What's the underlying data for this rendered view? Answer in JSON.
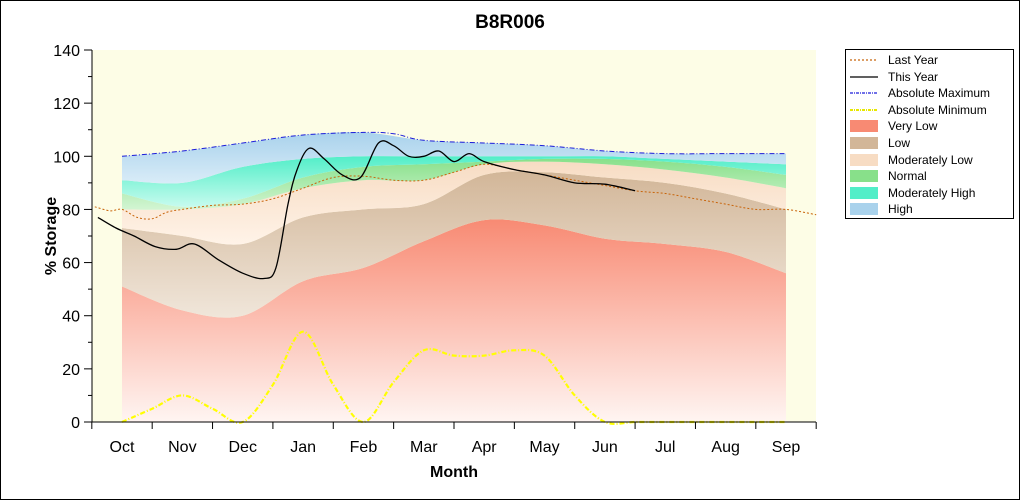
{
  "chart_data": {
    "type": "area",
    "title": "B8R006",
    "xlabel": "Month",
    "ylabel": "% Storage",
    "ylim": [
      0,
      140
    ],
    "yticks": [
      0,
      20,
      40,
      60,
      80,
      100,
      120,
      140
    ],
    "categories": [
      "Oct",
      "Nov",
      "Dec",
      "Jan",
      "Feb",
      "Mar",
      "Apr",
      "May",
      "Jun",
      "Jul",
      "Aug",
      "Sep"
    ],
    "band_x": [
      0,
      1,
      2,
      3,
      4,
      5,
      6,
      7,
      8,
      9,
      10,
      11
    ],
    "bands": [
      {
        "name": "Very Low",
        "lower": [
          0,
          0,
          0,
          0,
          0,
          0,
          0,
          0,
          0,
          0,
          0,
          0
        ],
        "upper": [
          51,
          42,
          40,
          53,
          58,
          68,
          76,
          74,
          69,
          67,
          64,
          56
        ],
        "color_top": "#f88a73",
        "color_bottom": "#fff5f2"
      },
      {
        "name": "Low",
        "lower": [
          51,
          42,
          40,
          53,
          58,
          68,
          76,
          74,
          69,
          67,
          64,
          56
        ],
        "upper": [
          73,
          70,
          67,
          77,
          80,
          82,
          93,
          94,
          92,
          90,
          86,
          80
        ],
        "color_top": "#d2b698",
        "color_bottom": "#f0e6da"
      },
      {
        "name": "Moderately Low",
        "lower": [
          73,
          70,
          67,
          77,
          80,
          82,
          93,
          94,
          92,
          90,
          86,
          80
        ],
        "upper": [
          80,
          80,
          82,
          88,
          91,
          91,
          97,
          98,
          97,
          95,
          92,
          88
        ],
        "color_top": "#f7dcc3",
        "color_bottom": "#fff3e8"
      },
      {
        "name": "Normal",
        "lower": [
          80,
          80,
          82,
          88,
          91,
          91,
          97,
          98,
          97,
          95,
          92,
          88
        ],
        "upper": [
          86,
          81,
          84,
          92,
          96,
          97,
          98,
          99,
          99,
          98,
          96,
          93
        ],
        "color_top": "#88e08a",
        "color_bottom": "#d3f5d3"
      },
      {
        "name": "Moderately High",
        "lower": [
          86,
          81,
          84,
          92,
          96,
          97,
          98,
          99,
          99,
          98,
          96,
          93
        ],
        "upper": [
          91,
          90,
          96,
          99,
          100,
          100,
          100,
          100,
          100,
          99,
          98,
          97
        ],
        "color_top": "#52eec8",
        "color_bottom": "#c7fbee"
      },
      {
        "name": "High",
        "lower": [
          91,
          90,
          96,
          99,
          100,
          100,
          100,
          100,
          100,
          99,
          98,
          97
        ],
        "upper": [
          100,
          102,
          105,
          108,
          109,
          106,
          105,
          104,
          102,
          101,
          101,
          101
        ],
        "color_top": "#a9d2ec",
        "color_bottom": "#d9ecf8"
      }
    ],
    "series": [
      {
        "name": "Last Year",
        "style": "dotted",
        "color": "#c8640a",
        "x": [
          -0.45,
          -0.2,
          0,
          0.25,
          0.5,
          0.75,
          1,
          1.5,
          2,
          2.5,
          3,
          3.5,
          4,
          4.5,
          5,
          5.5,
          6,
          6.5,
          7,
          7.5,
          8,
          8.5,
          9,
          9.5,
          10,
          10.5,
          11,
          11.5
        ],
        "y": [
          81,
          79.5,
          80,
          77,
          76.5,
          79,
          80,
          81.5,
          82,
          84,
          88,
          92,
          92.5,
          91,
          91,
          94,
          97,
          95,
          93,
          91,
          89,
          87,
          86,
          84,
          82,
          80,
          80,
          78
        ]
      },
      {
        "name": "This Year",
        "style": "solid",
        "color": "#000000",
        "x": [
          -0.4,
          -0.1,
          0.2,
          0.55,
          0.9,
          1.2,
          1.6,
          2,
          2.35,
          2.55,
          2.75,
          2.9,
          3.1,
          3.35,
          3.65,
          3.95,
          4.25,
          4.5,
          4.75,
          5,
          5.25,
          5.5,
          5.75,
          6,
          6.5,
          7,
          7.5,
          8,
          8.5
        ],
        "y": [
          77,
          73,
          70,
          66,
          65,
          67,
          61,
          56,
          54,
          58,
          82,
          95,
          103,
          99,
          93,
          92,
          105,
          104,
          100,
          100,
          102,
          98,
          101,
          98,
          95,
          93,
          90,
          89.5,
          87
        ]
      },
      {
        "name": "Absolute Maximum",
        "style": "dashdot",
        "color": "#1c1cd9",
        "x": [
          0,
          1,
          2,
          3,
          4,
          4.5,
          5,
          6,
          7,
          8,
          9,
          10,
          11
        ],
        "y": [
          100,
          102,
          105,
          108,
          109,
          108.5,
          106,
          105,
          104,
          102,
          101,
          101,
          101
        ]
      },
      {
        "name": "Absolute Minimum",
        "style": "dashdot",
        "color": "#ffff00",
        "x": [
          0,
          0.5,
          1,
          1.5,
          2,
          2.5,
          3,
          3.5,
          4,
          4.5,
          5,
          5.5,
          6,
          6.5,
          7,
          7.5,
          8,
          8.5,
          9,
          9.5,
          10,
          10.5,
          11
        ],
        "y": [
          0,
          5,
          10,
          5,
          0,
          14,
          34,
          14,
          0,
          15,
          27,
          25,
          25,
          27,
          25,
          10,
          0,
          0,
          0,
          0,
          0,
          0,
          0
        ]
      }
    ],
    "legend": [
      {
        "label": "Last Year",
        "kind": "line",
        "color": "#c8640a",
        "dash": "2,2"
      },
      {
        "label": "This Year",
        "kind": "line",
        "color": "#000000",
        "dash": ""
      },
      {
        "label": "Absolute Maximum",
        "kind": "line",
        "color": "#1c1cd9",
        "dash": "3,1,1,1"
      },
      {
        "label": "Absolute Minimum",
        "kind": "line",
        "color": "#e8e800",
        "dash": "3,1,1,1"
      },
      {
        "label": "Very Low",
        "kind": "fill",
        "color": "#f88a73"
      },
      {
        "label": "Low",
        "kind": "fill",
        "color": "#d2b698"
      },
      {
        "label": "Moderately Low",
        "kind": "fill",
        "color": "#f7dcc3"
      },
      {
        "label": "Normal",
        "kind": "fill",
        "color": "#88e08a"
      },
      {
        "label": "Moderately High",
        "kind": "fill",
        "color": "#52eec8"
      },
      {
        "label": "High",
        "kind": "fill",
        "color": "#a9d2ec"
      }
    ],
    "plot_background": "#fdfde6",
    "legend_position": "right",
    "grid": false
  }
}
